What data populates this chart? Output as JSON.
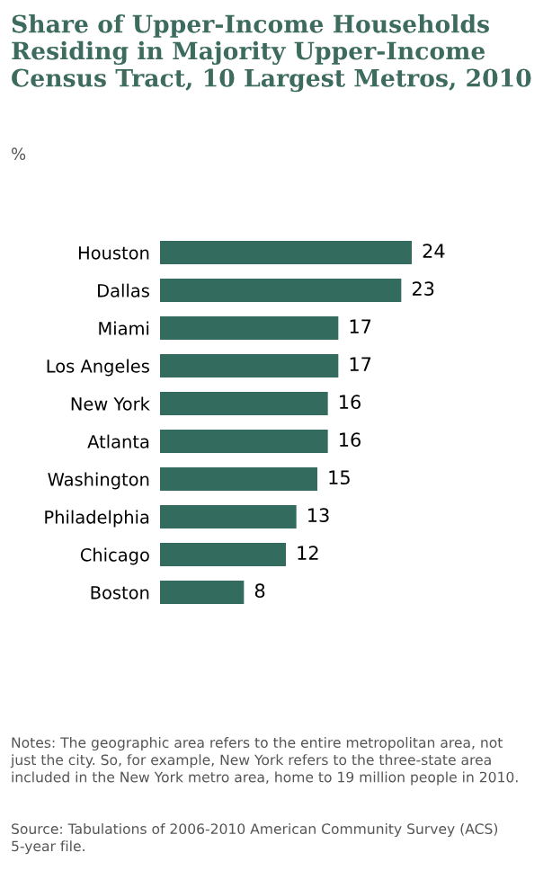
{
  "chart_data": {
    "type": "bar",
    "orientation": "horizontal",
    "title": "Share of Upper-Income Households Residing in Majority Upper-Income Census Tract, 10 Largest Metros, 2010",
    "subtitle": "%",
    "categories": [
      "Houston",
      "Dallas",
      "Miami",
      "Los Angeles",
      "New York",
      "Atlanta",
      "Washington",
      "Philadelphia",
      "Chicago",
      "Boston"
    ],
    "values": [
      24,
      23,
      17,
      17,
      16,
      16,
      15,
      13,
      12,
      8
    ],
    "color": "#336b5e",
    "data_labels": true,
    "grid": false,
    "annotations": [
      "Notes: The geographic area refers to the entire metropolitan area, not just the city. So, for example, New York refers to the three-state area included in the New York metro area, home to 19 million people in 2010.",
      "Source: Tabulations of 2006-2010 American Community Survey (ACS) 5-year file."
    ]
  }
}
